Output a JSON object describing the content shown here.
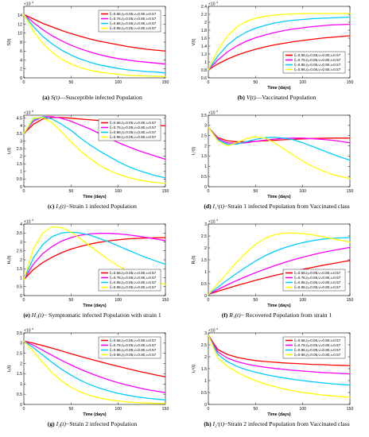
{
  "colors": {
    "series": [
      "#ff0000",
      "#ff00ff",
      "#00ccff",
      "#ffff00"
    ],
    "axis": "#000000"
  },
  "legend_labels": [
    "ξ=0.66,η=0.05,ν=0.80,ι=0.57",
    "ξ=0.76,η=0.05,ν=0.80,ι=0.57",
    "ξ=0.86,η=0.05,ν=0.80,ι=0.57",
    "ξ=0.96,η=0.05,ν=0.80,ι=0.57"
  ],
  "chart_data": [
    {
      "id": "a",
      "type": "line",
      "caption": {
        "tag": "(a)",
        "sym": "S(t)",
        "text": "—Susceptible infected Population"
      },
      "ylabel": "S(t)",
      "xlabel": "",
      "exponent": "10^4",
      "xlim": [
        0,
        150
      ],
      "ylim": [
        0,
        16
      ],
      "xticks": [
        "0",
        "50",
        "100",
        "150"
      ],
      "yticks": [
        "0",
        "2",
        "4",
        "6",
        "8",
        "10",
        "12",
        "14"
      ],
      "legend_position": "top-right",
      "x": [
        0,
        10,
        20,
        30,
        40,
        50,
        60,
        70,
        80,
        90,
        100,
        110,
        120,
        130,
        140,
        150
      ],
      "series": [
        {
          "values": [
            14.2,
            13.2,
            12.2,
            11.4,
            10.6,
            9.9,
            9.3,
            8.7,
            8.2,
            7.8,
            7.4,
            7.0,
            6.7,
            6.4,
            6.2,
            6.0
          ]
        },
        {
          "values": [
            14.2,
            12.4,
            10.8,
            9.4,
            8.3,
            7.3,
            6.5,
            5.8,
            5.2,
            4.7,
            4.3,
            4.0,
            3.7,
            3.5,
            3.3,
            3.1
          ]
        },
        {
          "values": [
            14.2,
            11.5,
            9.3,
            7.6,
            6.2,
            5.1,
            4.2,
            3.5,
            2.9,
            2.5,
            2.1,
            1.8,
            1.6,
            1.4,
            1.3,
            1.1
          ]
        },
        {
          "values": [
            14.2,
            10.5,
            7.7,
            5.7,
            4.2,
            3.1,
            2.3,
            1.7,
            1.3,
            1.0,
            0.8,
            0.6,
            0.5,
            0.4,
            0.35,
            0.3
          ]
        }
      ]
    },
    {
      "id": "b",
      "type": "line",
      "caption": {
        "tag": "(b)",
        "sym": "V(t)",
        "text": "—Vaccinated Population"
      },
      "ylabel": "V(t)",
      "xlabel": "Time (days)",
      "exponent": "10^4",
      "xlim": [
        0,
        150
      ],
      "ylim": [
        0.6,
        2.4
      ],
      "xticks": [
        "0",
        "50",
        "100",
        "150"
      ],
      "yticks": [
        "0.6",
        "0.8",
        "1",
        "1.2",
        "1.4",
        "1.6",
        "1.8",
        "2",
        "2.2",
        "2.4"
      ],
      "legend_position": "bottom-right",
      "x": [
        0,
        10,
        20,
        30,
        40,
        50,
        60,
        70,
        80,
        90,
        100,
        110,
        120,
        130,
        140,
        150
      ],
      "series": [
        {
          "values": [
            0.8,
            0.95,
            1.07,
            1.17,
            1.25,
            1.32,
            1.38,
            1.43,
            1.47,
            1.51,
            1.54,
            1.57,
            1.6,
            1.62,
            1.64,
            1.66
          ]
        },
        {
          "values": [
            0.8,
            1.05,
            1.25,
            1.4,
            1.52,
            1.61,
            1.68,
            1.74,
            1.79,
            1.83,
            1.86,
            1.89,
            1.91,
            1.93,
            1.94,
            1.95
          ]
        },
        {
          "values": [
            0.8,
            1.15,
            1.42,
            1.61,
            1.75,
            1.85,
            1.92,
            1.98,
            2.02,
            2.05,
            2.07,
            2.09,
            2.1,
            2.11,
            2.12,
            2.13
          ]
        },
        {
          "values": [
            0.8,
            1.3,
            1.65,
            1.88,
            2.02,
            2.1,
            2.15,
            2.18,
            2.2,
            2.21,
            2.22,
            2.22,
            2.22,
            2.22,
            2.22,
            2.22
          ]
        }
      ]
    },
    {
      "id": "c",
      "type": "line",
      "caption": {
        "tag": "(c)",
        "sym": "I₁(t)",
        "text": "−Strain 1 infected Population"
      },
      "ylabel": "I₁(t)",
      "xlabel": "Time (days)",
      "exponent": "10^4",
      "xlim": [
        0,
        150
      ],
      "ylim": [
        0,
        4.7
      ],
      "xticks": [
        "0",
        "50",
        "100",
        "150"
      ],
      "yticks": [
        "0",
        "0.5",
        "1",
        "1.5",
        "2",
        "2.5",
        "3",
        "3.5",
        "4",
        "4.5"
      ],
      "legend_position": "top-right",
      "x": [
        0,
        10,
        20,
        30,
        40,
        50,
        60,
        70,
        80,
        90,
        100,
        110,
        120,
        130,
        140,
        150
      ],
      "series": [
        {
          "values": [
            3.5,
            4.1,
            4.45,
            4.55,
            4.55,
            4.5,
            4.45,
            4.4,
            4.35,
            4.3,
            4.25,
            4.2,
            4.15,
            4.1,
            4.05,
            4.0
          ]
        },
        {
          "values": [
            3.5,
            4.3,
            4.6,
            4.6,
            4.5,
            4.3,
            4.05,
            3.8,
            3.5,
            3.2,
            2.9,
            2.65,
            2.4,
            2.2,
            2.0,
            1.8
          ]
        },
        {
          "values": [
            3.5,
            4.4,
            4.6,
            4.45,
            4.1,
            3.7,
            3.2,
            2.75,
            2.35,
            2.0,
            1.65,
            1.35,
            1.1,
            0.9,
            0.72,
            0.58
          ]
        },
        {
          "values": [
            3.5,
            4.5,
            4.55,
            4.2,
            3.6,
            2.95,
            2.35,
            1.85,
            1.42,
            1.08,
            0.82,
            0.62,
            0.47,
            0.36,
            0.28,
            0.22
          ]
        }
      ]
    },
    {
      "id": "d",
      "type": "line",
      "caption": {
        "tag": "(d)",
        "sym": "I₁ᵛ(t)",
        "text": "−Strain 1 infected Population from Vaccinated class"
      },
      "ylabel": "I₁ᵛ(t)",
      "xlabel": "Time (days)",
      "exponent": "10^4",
      "xlim": [
        0,
        150
      ],
      "ylim": [
        0,
        3.5
      ],
      "xticks": [
        "0",
        "50",
        "100",
        "150"
      ],
      "yticks": [
        "0",
        "0.5",
        "1",
        "1.5",
        "2",
        "2.5",
        "3",
        "3.5"
      ],
      "legend_position": "none",
      "x": [
        0,
        10,
        20,
        30,
        40,
        50,
        60,
        70,
        80,
        90,
        100,
        110,
        120,
        130,
        140,
        150
      ],
      "series": [
        {
          "values": [
            2.9,
            2.4,
            2.25,
            2.2,
            2.2,
            2.22,
            2.25,
            2.27,
            2.3,
            2.32,
            2.34,
            2.36,
            2.37,
            2.38,
            2.38,
            2.38
          ]
        },
        {
          "values": [
            2.9,
            2.35,
            2.15,
            2.12,
            2.15,
            2.22,
            2.28,
            2.33,
            2.37,
            2.38,
            2.38,
            2.35,
            2.32,
            2.28,
            2.22,
            2.15
          ]
        },
        {
          "values": [
            2.9,
            2.3,
            2.08,
            2.08,
            2.2,
            2.32,
            2.4,
            2.42,
            2.38,
            2.3,
            2.15,
            1.98,
            1.8,
            1.62,
            1.45,
            1.3
          ]
        },
        {
          "values": [
            2.9,
            2.25,
            2.0,
            2.15,
            2.35,
            2.45,
            2.38,
            2.15,
            1.85,
            1.55,
            1.25,
            1.0,
            0.8,
            0.62,
            0.5,
            0.4
          ]
        }
      ]
    },
    {
      "id": "e",
      "type": "line",
      "caption": {
        "tag": "(e)",
        "sym": "H₁(t)",
        "text": "− Symptomatic infected Population with strain 1"
      },
      "ylabel": "H₁(t)",
      "xlabel": "Time (days)",
      "exponent": "10^4",
      "xlim": [
        0,
        150
      ],
      "ylim": [
        0,
        4
      ],
      "xticks": [
        "0",
        "50",
        "100",
        "150"
      ],
      "yticks": [
        "0",
        "0.5",
        "1",
        "1.5",
        "2",
        "2.5",
        "3",
        "3.5",
        "4"
      ],
      "legend_position": "bottom-right",
      "x": [
        0,
        10,
        20,
        30,
        40,
        50,
        60,
        70,
        80,
        90,
        100,
        110,
        120,
        130,
        140,
        150
      ],
      "series": [
        {
          "values": [
            0.9,
            1.45,
            1.85,
            2.15,
            2.4,
            2.6,
            2.75,
            2.88,
            2.98,
            3.06,
            3.12,
            3.17,
            3.2,
            3.22,
            3.23,
            3.24
          ]
        },
        {
          "values": [
            0.9,
            1.75,
            2.35,
            2.75,
            3.05,
            3.25,
            3.38,
            3.45,
            3.48,
            3.48,
            3.45,
            3.4,
            3.33,
            3.25,
            3.16,
            3.07
          ]
        },
        {
          "values": [
            0.9,
            2.1,
            2.85,
            3.3,
            3.5,
            3.55,
            3.5,
            3.38,
            3.2,
            3.0,
            2.78,
            2.55,
            2.33,
            2.12,
            1.93,
            1.75
          ]
        },
        {
          "values": [
            0.9,
            2.6,
            3.5,
            3.85,
            3.8,
            3.55,
            3.18,
            2.78,
            2.38,
            2.0,
            1.66,
            1.37,
            1.12,
            0.92,
            0.75,
            0.62
          ]
        }
      ]
    },
    {
      "id": "f",
      "type": "line",
      "caption": {
        "tag": "(f)",
        "sym": "R₁(t)",
        "text": "− Recovered Population from strain 1"
      },
      "ylabel": "R₁(t)",
      "xlabel": "Time (days)",
      "exponent": "10^4",
      "xlim": [
        0,
        150
      ],
      "ylim": [
        0,
        3
      ],
      "xticks": [
        "0",
        "50",
        "100",
        "150"
      ],
      "yticks": [
        "0",
        "0.5",
        "1",
        "1.5",
        "2",
        "2.5",
        "3"
      ],
      "legend_position": "bottom-right",
      "x": [
        0,
        10,
        20,
        30,
        40,
        50,
        60,
        70,
        80,
        90,
        100,
        110,
        120,
        130,
        140,
        150
      ],
      "series": [
        {
          "values": [
            0.05,
            0.18,
            0.3,
            0.42,
            0.53,
            0.64,
            0.74,
            0.84,
            0.93,
            1.02,
            1.1,
            1.18,
            1.26,
            1.33,
            1.4,
            1.47
          ]
        },
        {
          "values": [
            0.05,
            0.25,
            0.45,
            0.63,
            0.8,
            0.96,
            1.11,
            1.25,
            1.38,
            1.5,
            1.61,
            1.71,
            1.8,
            1.88,
            1.95,
            2.02
          ]
        },
        {
          "values": [
            0.05,
            0.35,
            0.65,
            0.93,
            1.2,
            1.45,
            1.67,
            1.85,
            2.0,
            2.12,
            2.22,
            2.3,
            2.36,
            2.4,
            2.42,
            2.43
          ]
        },
        {
          "values": [
            0.05,
            0.5,
            0.95,
            1.4,
            1.8,
            2.15,
            2.4,
            2.55,
            2.62,
            2.63,
            2.6,
            2.55,
            2.48,
            2.4,
            2.32,
            2.24
          ]
        }
      ]
    },
    {
      "id": "g",
      "type": "line",
      "caption": {
        "tag": "(g)",
        "sym": "I₂(t)",
        "text": "−Strain 2 infected Population"
      },
      "ylabel": "I₂(t)",
      "xlabel": "Time (days)",
      "exponent": "10^4",
      "xlim": [
        0,
        150
      ],
      "ylim": [
        0,
        3.5
      ],
      "xticks": [
        "0",
        "50",
        "100",
        "150"
      ],
      "yticks": [
        "0",
        "0.5",
        "1",
        "1.5",
        "2",
        "2.5",
        "3",
        "3.5"
      ],
      "legend_position": "top-right",
      "x": [
        0,
        10,
        20,
        30,
        40,
        50,
        60,
        70,
        80,
        90,
        100,
        110,
        120,
        130,
        140,
        150
      ],
      "series": [
        {
          "values": [
            3.1,
            3.0,
            2.88,
            2.75,
            2.62,
            2.48,
            2.35,
            2.22,
            2.1,
            1.98,
            1.86,
            1.75,
            1.64,
            1.54,
            1.44,
            1.35
          ]
        },
        {
          "values": [
            3.1,
            2.9,
            2.65,
            2.4,
            2.15,
            1.93,
            1.72,
            1.53,
            1.36,
            1.2,
            1.06,
            0.94,
            0.83,
            0.73,
            0.65,
            0.58
          ]
        },
        {
          "values": [
            3.1,
            2.78,
            2.42,
            2.05,
            1.72,
            1.43,
            1.18,
            0.97,
            0.8,
            0.66,
            0.54,
            0.45,
            0.37,
            0.31,
            0.26,
            0.22
          ]
        },
        {
          "values": [
            3.1,
            2.6,
            2.05,
            1.55,
            1.15,
            0.84,
            0.61,
            0.44,
            0.32,
            0.23,
            0.17,
            0.12,
            0.09,
            0.07,
            0.05,
            0.04
          ]
        }
      ]
    },
    {
      "id": "h",
      "type": "line",
      "caption": {
        "tag": "(h)",
        "sym": "I₂ᵛ(t)",
        "text": "−Strain 2 infected Population from Vaccinated class"
      },
      "ylabel": "I₂ᵛ(t)",
      "xlabel": "Time (days)",
      "exponent": "10^4",
      "xlim": [
        0,
        150
      ],
      "ylim": [
        0,
        3
      ],
      "xticks": [
        "0",
        "50",
        "100",
        "150"
      ],
      "yticks": [
        "0",
        "0.5",
        "1",
        "1.5",
        "2",
        "2.5",
        "3"
      ],
      "legend_position": "top-right",
      "x": [
        0,
        10,
        20,
        30,
        40,
        50,
        60,
        70,
        80,
        90,
        100,
        110,
        120,
        130,
        140,
        150
      ],
      "series": [
        {
          "values": [
            2.9,
            2.3,
            2.1,
            1.98,
            1.9,
            1.84,
            1.8,
            1.77,
            1.74,
            1.72,
            1.7,
            1.68,
            1.67,
            1.65,
            1.64,
            1.63
          ]
        },
        {
          "values": [
            2.9,
            2.2,
            1.95,
            1.8,
            1.7,
            1.62,
            1.56,
            1.51,
            1.47,
            1.43,
            1.4,
            1.37,
            1.34,
            1.32,
            1.3,
            1.28
          ]
        },
        {
          "values": [
            2.9,
            2.1,
            1.8,
            1.6,
            1.46,
            1.35,
            1.26,
            1.18,
            1.11,
            1.05,
            1.0,
            0.95,
            0.91,
            0.87,
            0.84,
            0.81
          ]
        },
        {
          "values": [
            2.9,
            1.95,
            1.6,
            1.36,
            1.16,
            1.0,
            0.86,
            0.75,
            0.65,
            0.57,
            0.5,
            0.45,
            0.4,
            0.36,
            0.33,
            0.3
          ]
        }
      ]
    }
  ]
}
